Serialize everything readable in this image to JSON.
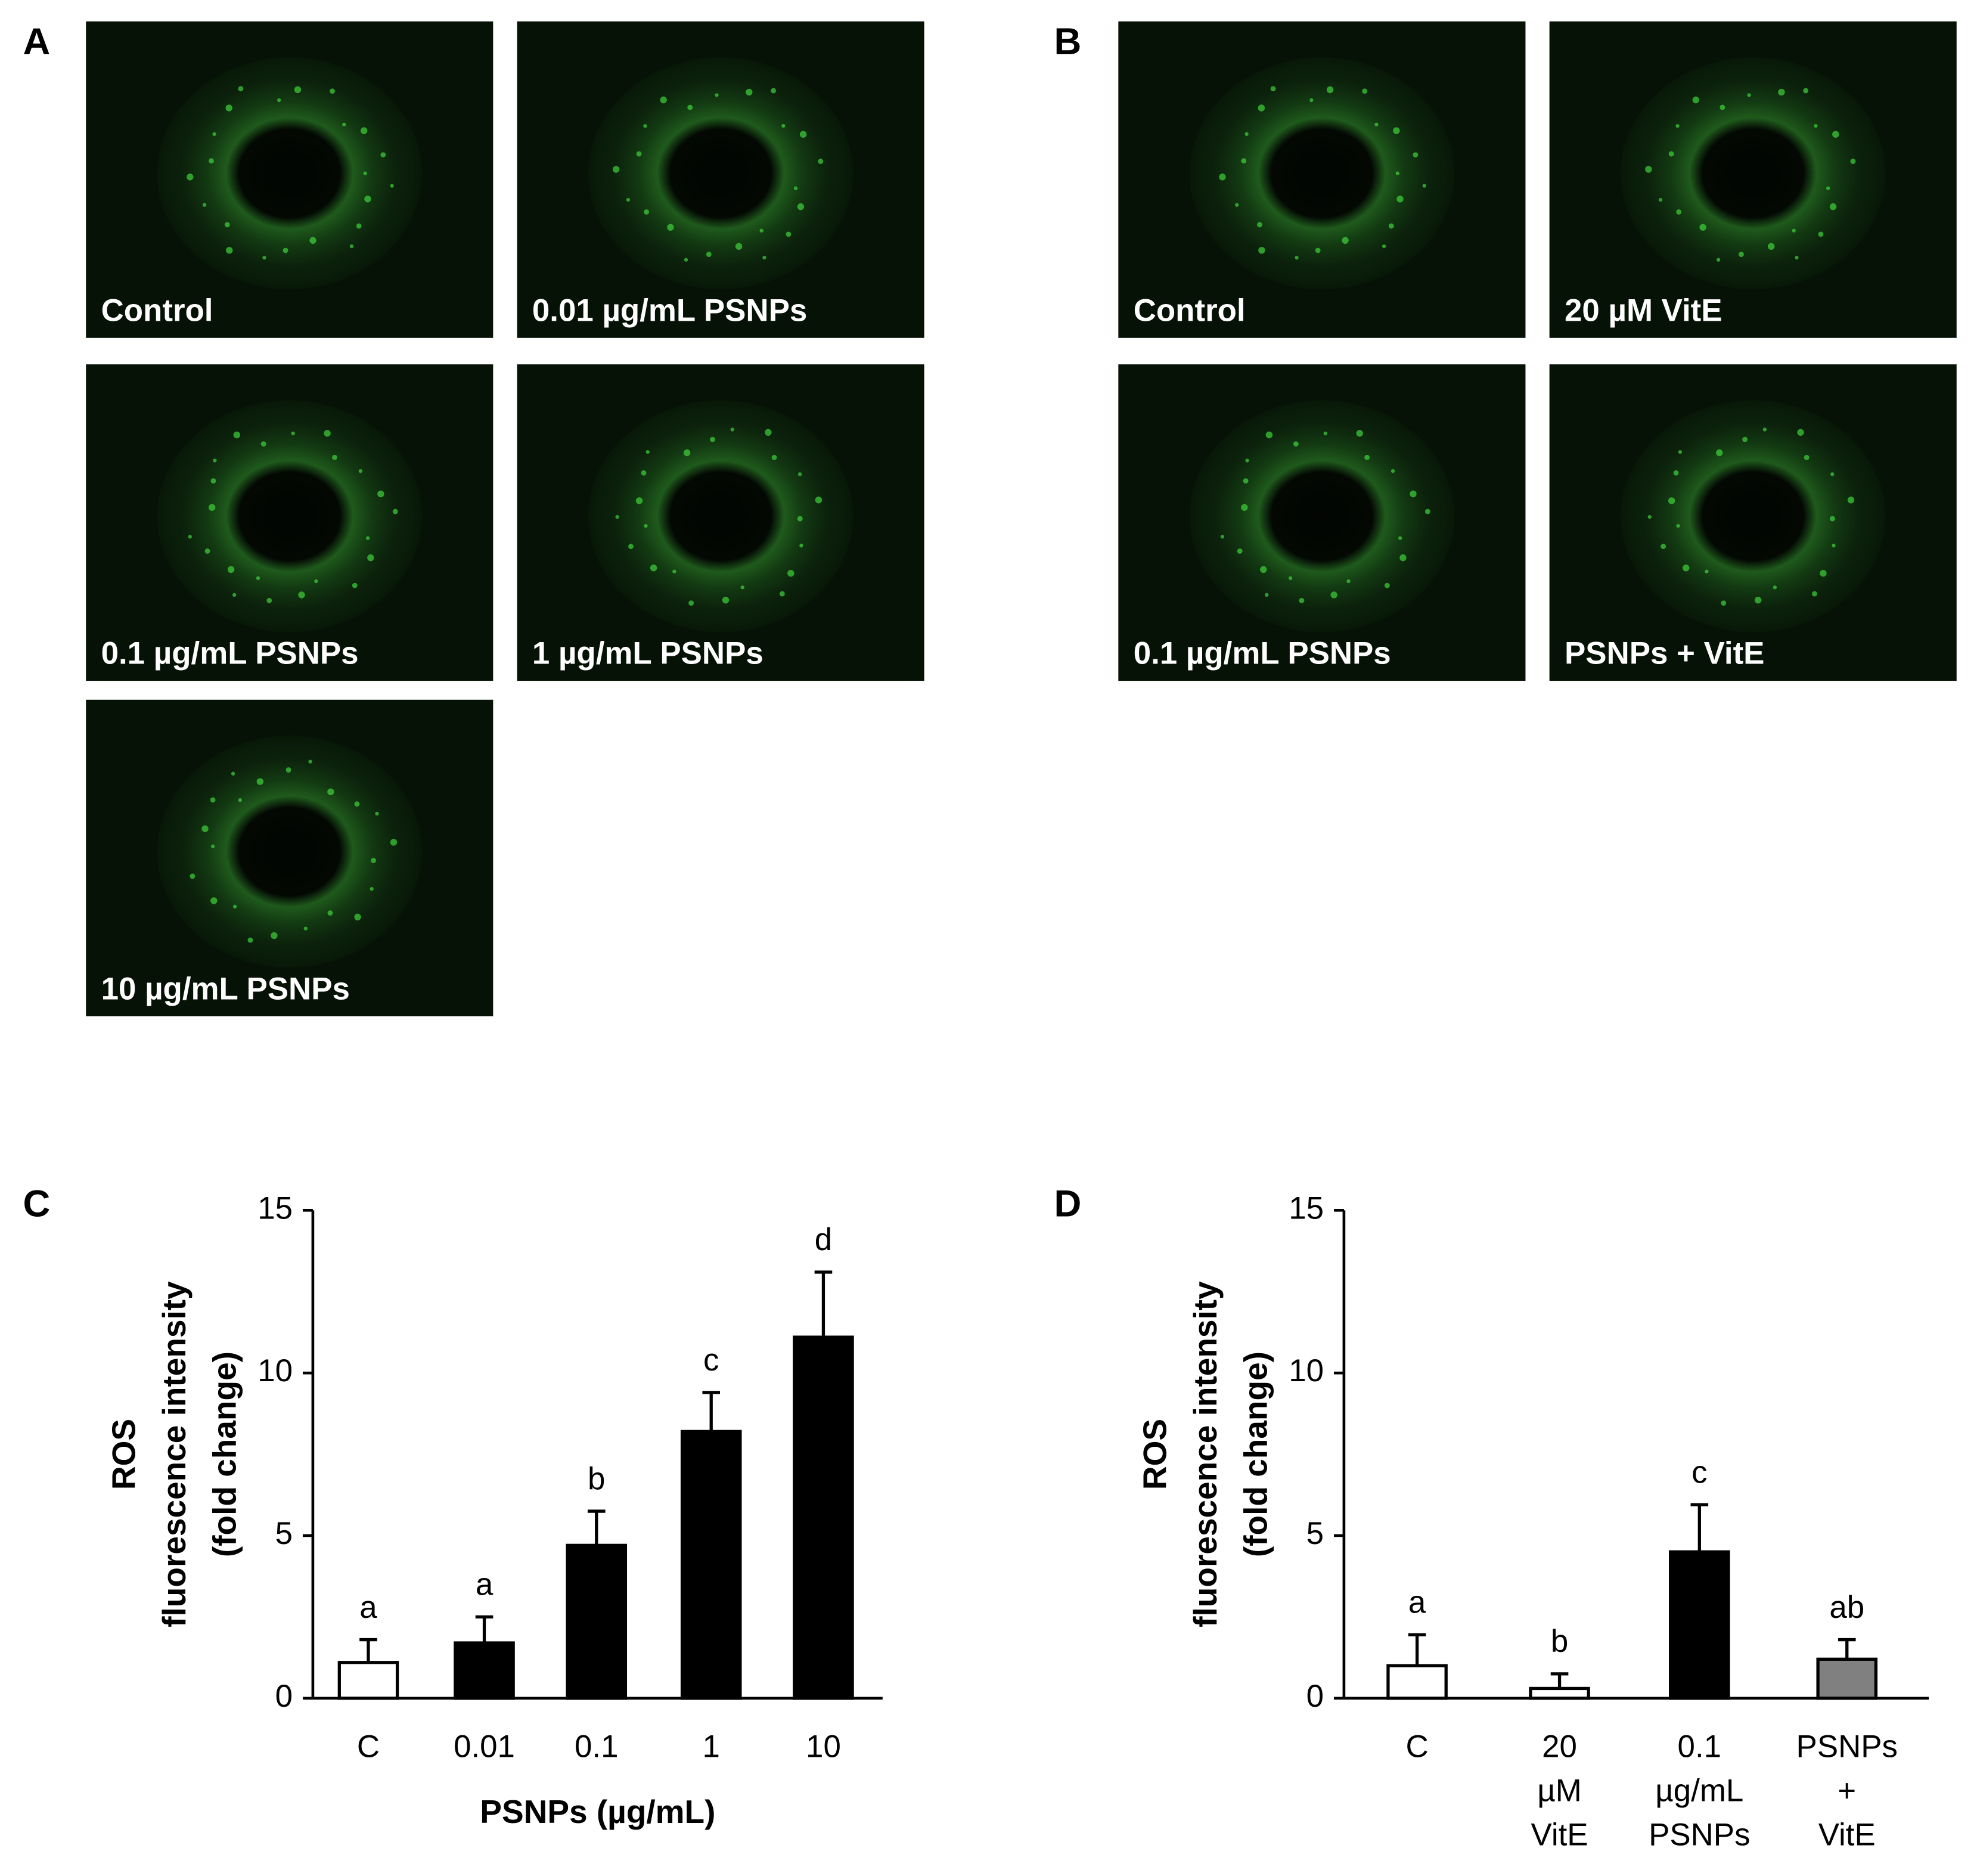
{
  "panel_letters": [
    "A",
    "B",
    "C",
    "D"
  ],
  "images_a": [
    "Control",
    "0.01 µg/mL PSNPs",
    "0.1 µg/mL PSNPs",
    "1 µg/mL PSNPs",
    "10 µg/mL PSNPs"
  ],
  "images_b": [
    "Control",
    "20 µM VitE",
    "0.1 µg/mL PSNPs",
    "PSNPs + VitE"
  ],
  "chart_data": [
    {
      "type": "bar",
      "y_label": [
        "ROS",
        "fluorescence intensity",
        "(fold change)"
      ],
      "x_label": "PSNPs (µg/mL)",
      "categories": [
        [
          "C"
        ],
        [
          "0.01"
        ],
        [
          "0.1"
        ],
        [
          "1"
        ],
        [
          "10"
        ]
      ],
      "values": [
        1.1,
        1.7,
        4.7,
        8.2,
        11.1
      ],
      "errors": [
        0.7,
        0.8,
        1.05,
        1.2,
        2.0
      ],
      "annotations": [
        "a",
        "a",
        "b",
        "c",
        "d"
      ],
      "colors": [
        "#ffffff",
        "#000000",
        "#000000",
        "#000000",
        "#000000"
      ],
      "ylim": [
        0,
        15
      ],
      "yticks": [
        0,
        5,
        10,
        15
      ],
      "grid": false
    },
    {
      "type": "bar",
      "y_label": [
        "ROS",
        "fluorescence intensity",
        "(fold change)"
      ],
      "categories": [
        [
          "C"
        ],
        [
          "20",
          "µM",
          "VitE"
        ],
        [
          "0.1",
          "µg/mL",
          "PSNPs"
        ],
        [
          "PSNPs",
          "+",
          "VitE"
        ]
      ],
      "values": [
        1.0,
        0.3,
        4.5,
        1.2
      ],
      "errors": [
        0.95,
        0.45,
        1.45,
        0.6
      ],
      "annotations": [
        "a",
        "b",
        "c",
        "ab"
      ],
      "colors": [
        "#ffffff",
        "#ffffff",
        "#000000",
        "#808080"
      ],
      "ylim": [
        0,
        15
      ],
      "yticks": [
        0,
        5,
        10,
        15
      ],
      "grid": false
    }
  ]
}
